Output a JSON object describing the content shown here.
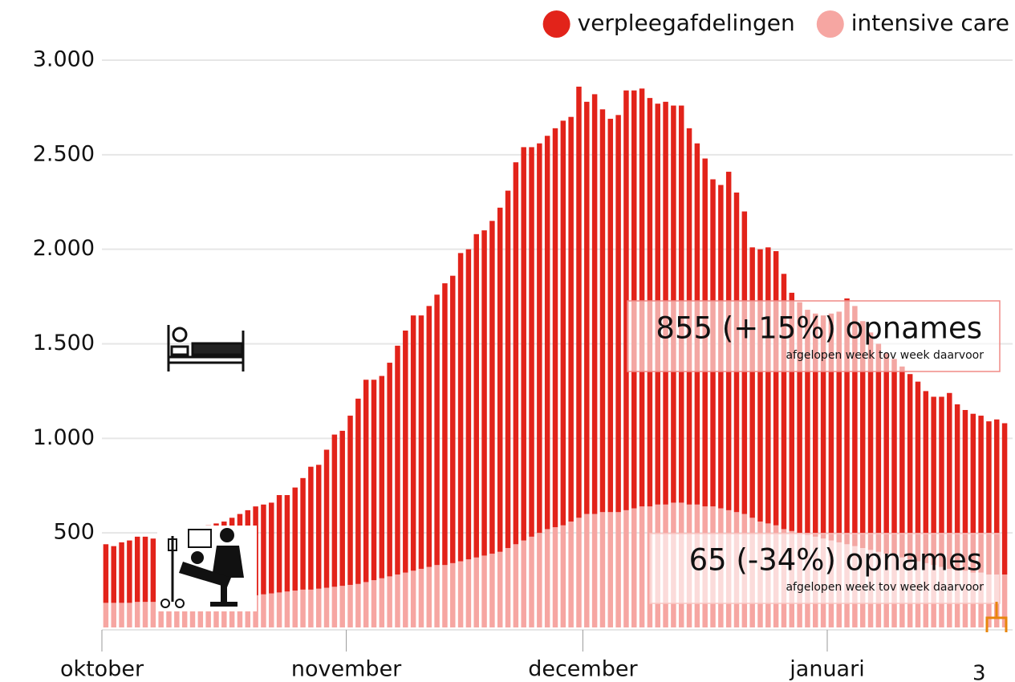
{
  "chart_data": {
    "type": "stacked_bar",
    "categories": [
      "oktober",
      null,
      null,
      null,
      null,
      null,
      null,
      null,
      null,
      null,
      null,
      null,
      null,
      null,
      null,
      null,
      null,
      null,
      null,
      null,
      null,
      null,
      null,
      null,
      null,
      null,
      null,
      null,
      null,
      null,
      null,
      "november",
      null,
      null,
      null,
      null,
      null,
      null,
      null,
      null,
      null,
      null,
      null,
      null,
      null,
      null,
      null,
      null,
      null,
      null,
      null,
      null,
      null,
      null,
      null,
      null,
      null,
      null,
      null,
      null,
      null,
      "december",
      null,
      null,
      null,
      null,
      null,
      null,
      null,
      null,
      null,
      null,
      null,
      null,
      null,
      null,
      null,
      null,
      null,
      null,
      null,
      null,
      null,
      null,
      null,
      null,
      null,
      null,
      null,
      null,
      null,
      null,
      "januari",
      null,
      null,
      null,
      null,
      null,
      null,
      null,
      null,
      null,
      null,
      null,
      null,
      null,
      null,
      null,
      null,
      null,
      null,
      null,
      null,
      null,
      null
    ],
    "series": [
      {
        "name": "intensive care",
        "color": "#f6a6a2",
        "values": [
          130,
          130,
          130,
          130,
          135,
          135,
          135,
          140,
          140,
          140,
          145,
          145,
          150,
          150,
          155,
          155,
          160,
          165,
          165,
          170,
          175,
          180,
          185,
          190,
          195,
          200,
          200,
          205,
          210,
          215,
          220,
          225,
          230,
          240,
          250,
          260,
          270,
          280,
          290,
          300,
          310,
          320,
          330,
          330,
          340,
          350,
          360,
          370,
          380,
          390,
          400,
          420,
          440,
          460,
          480,
          500,
          520,
          530,
          540,
          560,
          580,
          600,
          600,
          610,
          610,
          610,
          620,
          630,
          640,
          640,
          650,
          650,
          660,
          660,
          650,
          650,
          640,
          640,
          630,
          620,
          610,
          600,
          580,
          560,
          550,
          540,
          520,
          510,
          500,
          490,
          480,
          470,
          460,
          450,
          440,
          430,
          420,
          410,
          400,
          390,
          380,
          370,
          360,
          350,
          340,
          330,
          320,
          310,
          300,
          300,
          290,
          290,
          280,
          280,
          280
        ]
      },
      {
        "name": "verpleegafdelingen",
        "color": "#e2231a",
        "values": [
          310,
          300,
          320,
          330,
          345,
          345,
          335,
          340,
          350,
          360,
          365,
          375,
          380,
          390,
          395,
          405,
          420,
          435,
          455,
          470,
          475,
          480,
          515,
          510,
          545,
          590,
          650,
          655,
          730,
          805,
          820,
          895,
          980,
          1070,
          1060,
          1070,
          1130,
          1210,
          1280,
          1350,
          1340,
          1380,
          1430,
          1490,
          1520,
          1630,
          1640,
          1710,
          1720,
          1760,
          1820,
          1890,
          2020,
          2080,
          2060,
          2060,
          2080,
          2110,
          2140,
          2140,
          2280,
          2180,
          2220,
          2130,
          2080,
          2100,
          2220,
          2210,
          2210,
          2160,
          2120,
          2130,
          2100,
          2100,
          1990,
          1910,
          1840,
          1730,
          1710,
          1790,
          1690,
          1600,
          1430,
          1440,
          1460,
          1450,
          1350,
          1260,
          1220,
          1190,
          1180,
          1180,
          1200,
          1220,
          1300,
          1270,
          1200,
          1150,
          1100,
          1060,
          1040,
          1010,
          980,
          950,
          910,
          890,
          900,
          930,
          880,
          850,
          840,
          830,
          810,
          820,
          800
        ]
      }
    ],
    "ylim": [
      0,
      3000
    ],
    "yticks": [
      {
        "value": 500,
        "label": "500"
      },
      {
        "value": 1000,
        "label": "1.000"
      },
      {
        "value": 1500,
        "label": "1.500"
      },
      {
        "value": 2000,
        "label": "2.000"
      },
      {
        "value": 2500,
        "label": "2.500"
      },
      {
        "value": 3000,
        "label": "3.000"
      }
    ],
    "grid": true,
    "legend": "top-right",
    "annotations": [
      {
        "text": "855 (+15%) opnames",
        "subtext": "afgelopen week tov week daarvoor"
      },
      {
        "text": "65 (-34%) opnames",
        "subtext": "afgelopen week tov week daarvoor"
      }
    ],
    "page_number": "3"
  }
}
